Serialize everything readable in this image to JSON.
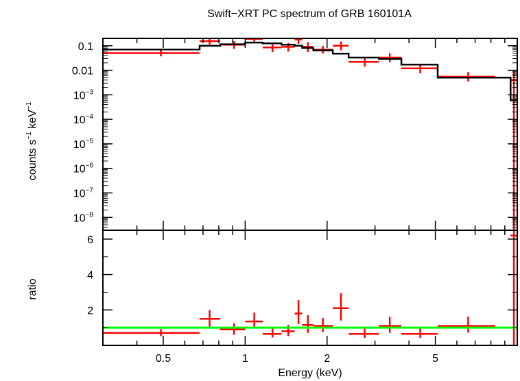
{
  "chart_data": {
    "type": "scatter",
    "title": "Swift−XRT PC spectrum of GRB 160101A",
    "xlabel": "Energy (keV)",
    "x_scale": "log",
    "xlim": [
      0.3,
      10
    ],
    "x_tick_labels": [
      {
        "value": 0.5,
        "label": "0.5"
      },
      {
        "value": 1,
        "label": "1"
      },
      {
        "value": 2,
        "label": "2"
      },
      {
        "value": 5,
        "label": "5"
      }
    ],
    "top_panel": {
      "ylabel_main": "counts s",
      "ylabel_exp1": "−1",
      "ylabel_mid": " keV",
      "ylabel_exp2": "−1",
      "y_scale": "log",
      "ylim": [
        3e-09,
        0.2
      ],
      "y_tick_labels": [
        {
          "value": 0.1,
          "base": "0.1",
          "exp": ""
        },
        {
          "value": 0.01,
          "base": "0.01",
          "exp": ""
        },
        {
          "value": 0.001,
          "base": "10",
          "exp": "−3"
        },
        {
          "value": 0.0001,
          "base": "10",
          "exp": "−4"
        },
        {
          "value": 1e-05,
          "base": "10",
          "exp": "−5"
        },
        {
          "value": 1e-06,
          "base": "10",
          "exp": "−6"
        },
        {
          "value": 1e-07,
          "base": "10",
          "exp": "−7"
        },
        {
          "value": 1e-08,
          "base": "10",
          "exp": "−8"
        }
      ],
      "data": [
        {
          "x_lo": 0.3,
          "x_hi": 0.68,
          "x": 0.49,
          "y": 0.05,
          "y_lo": 0.037,
          "y_hi": 0.065
        },
        {
          "x_lo": 0.68,
          "x_hi": 0.81,
          "x": 0.74,
          "y": 0.155,
          "y_lo": 0.11,
          "y_hi": 0.21
        },
        {
          "x_lo": 0.81,
          "x_hi": 1.0,
          "x": 0.91,
          "y": 0.11,
          "y_lo": 0.075,
          "y_hi": 0.155
        },
        {
          "x_lo": 1.0,
          "x_hi": 1.16,
          "x": 1.08,
          "y": 0.19,
          "y_lo": 0.14,
          "y_hi": 0.26
        },
        {
          "x_lo": 1.16,
          "x_hi": 1.36,
          "x": 1.26,
          "y": 0.085,
          "y_lo": 0.055,
          "y_hi": 0.12
        },
        {
          "x_lo": 1.36,
          "x_hi": 1.52,
          "x": 1.44,
          "y": 0.09,
          "y_lo": 0.058,
          "y_hi": 0.13
        },
        {
          "x_lo": 1.52,
          "x_hi": 1.62,
          "x": 1.57,
          "y": 0.18,
          "y_lo": 0.12,
          "y_hi": 0.26
        },
        {
          "x_lo": 1.62,
          "x_hi": 1.78,
          "x": 1.7,
          "y": 0.09,
          "y_lo": 0.055,
          "y_hi": 0.14
        },
        {
          "x_lo": 1.78,
          "x_hi": 2.1,
          "x": 1.93,
          "y": 0.07,
          "y_lo": 0.048,
          "y_hi": 0.1
        },
        {
          "x_lo": 2.1,
          "x_hi": 2.4,
          "x": 2.25,
          "y": 0.1,
          "y_lo": 0.065,
          "y_hi": 0.15
        },
        {
          "x_lo": 2.4,
          "x_hi": 3.1,
          "x": 2.75,
          "y": 0.022,
          "y_lo": 0.014,
          "y_hi": 0.033
        },
        {
          "x_lo": 3.1,
          "x_hi": 3.75,
          "x": 3.4,
          "y": 0.033,
          "y_lo": 0.021,
          "y_hi": 0.05
        },
        {
          "x_lo": 3.75,
          "x_hi": 5.1,
          "x": 4.4,
          "y": 0.012,
          "y_lo": 0.0075,
          "y_hi": 0.018
        },
        {
          "x_lo": 5.1,
          "x_hi": 8.3,
          "x": 6.6,
          "y": 0.0055,
          "y_lo": 0.0035,
          "y_hi": 0.0085
        },
        {
          "x_lo": 9.45,
          "x_hi": 10.0,
          "x": 9.72,
          "y": 0.004,
          "y_lo": 3e-09,
          "y_hi": 0.009
        }
      ],
      "model": [
        {
          "x_lo": 0.3,
          "x_hi": 0.68,
          "y": 0.07
        },
        {
          "x_lo": 0.68,
          "x_hi": 0.81,
          "y": 0.1
        },
        {
          "x_lo": 0.81,
          "x_hi": 1.0,
          "y": 0.115
        },
        {
          "x_lo": 1.0,
          "x_hi": 1.16,
          "y": 0.135
        },
        {
          "x_lo": 1.16,
          "x_hi": 1.36,
          "y": 0.125
        },
        {
          "x_lo": 1.36,
          "x_hi": 1.52,
          "y": 0.11
        },
        {
          "x_lo": 1.52,
          "x_hi": 1.62,
          "y": 0.1
        },
        {
          "x_lo": 1.62,
          "x_hi": 1.78,
          "y": 0.082
        },
        {
          "x_lo": 1.78,
          "x_hi": 2.1,
          "y": 0.065
        },
        {
          "x_lo": 2.1,
          "x_hi": 2.4,
          "y": 0.048
        },
        {
          "x_lo": 2.4,
          "x_hi": 3.1,
          "y": 0.033
        },
        {
          "x_lo": 3.1,
          "x_hi": 3.75,
          "y": 0.029
        },
        {
          "x_lo": 3.75,
          "x_hi": 5.1,
          "y": 0.017
        },
        {
          "x_lo": 5.1,
          "x_hi": 8.3,
          "y": 0.005
        },
        {
          "x_lo": 8.3,
          "x_hi": 9.45,
          "y": 0.005
        },
        {
          "x_lo": 9.45,
          "x_hi": 10.0,
          "y": 0.0006
        }
      ]
    },
    "bottom_panel": {
      "ylabel": "ratio",
      "y_scale": "linear",
      "ylim": [
        0,
        6.5
      ],
      "y_tick_labels": [
        {
          "value": 2,
          "label": "2"
        },
        {
          "value": 4,
          "label": "4"
        },
        {
          "value": 6,
          "label": "6"
        }
      ],
      "reference_line": 1,
      "data": [
        {
          "x_lo": 0.3,
          "x_hi": 0.68,
          "x": 0.49,
          "y": 0.7,
          "y_lo": 0.52,
          "y_hi": 0.92
        },
        {
          "x_lo": 0.68,
          "x_hi": 0.81,
          "x": 0.74,
          "y": 1.5,
          "y_lo": 1.0,
          "y_hi": 2.0
        },
        {
          "x_lo": 0.81,
          "x_hi": 1.0,
          "x": 0.91,
          "y": 0.9,
          "y_lo": 0.6,
          "y_hi": 1.25
        },
        {
          "x_lo": 1.0,
          "x_hi": 1.16,
          "x": 1.08,
          "y": 1.35,
          "y_lo": 0.95,
          "y_hi": 1.85
        },
        {
          "x_lo": 1.16,
          "x_hi": 1.36,
          "x": 1.26,
          "y": 0.65,
          "y_lo": 0.45,
          "y_hi": 0.95
        },
        {
          "x_lo": 1.36,
          "x_hi": 1.52,
          "x": 1.44,
          "y": 0.8,
          "y_lo": 0.52,
          "y_hi": 1.15
        },
        {
          "x_lo": 1.52,
          "x_hi": 1.62,
          "x": 1.57,
          "y": 1.8,
          "y_lo": 1.2,
          "y_hi": 2.55
        },
        {
          "x_lo": 1.62,
          "x_hi": 1.78,
          "x": 1.7,
          "y": 1.15,
          "y_lo": 0.7,
          "y_hi": 1.7
        },
        {
          "x_lo": 1.78,
          "x_hi": 2.1,
          "x": 1.93,
          "y": 1.1,
          "y_lo": 0.75,
          "y_hi": 1.55
        },
        {
          "x_lo": 2.1,
          "x_hi": 2.4,
          "x": 2.25,
          "y": 2.1,
          "y_lo": 1.4,
          "y_hi": 2.95
        },
        {
          "x_lo": 2.4,
          "x_hi": 3.1,
          "x": 2.75,
          "y": 0.65,
          "y_lo": 0.42,
          "y_hi": 0.98
        },
        {
          "x_lo": 3.1,
          "x_hi": 3.75,
          "x": 3.4,
          "y": 1.1,
          "y_lo": 0.7,
          "y_hi": 1.6
        },
        {
          "x_lo": 3.75,
          "x_hi": 5.1,
          "x": 4.4,
          "y": 0.65,
          "y_lo": 0.42,
          "y_hi": 0.98
        },
        {
          "x_lo": 5.1,
          "x_hi": 8.3,
          "x": 6.6,
          "y": 1.1,
          "y_lo": 0.72,
          "y_hi": 1.62
        },
        {
          "x_lo": 9.45,
          "x_hi": 10.0,
          "x": 9.72,
          "y": 6.2,
          "y_lo": 0.0,
          "y_hi": 6.5
        }
      ]
    },
    "colors": {
      "data": "#ff0000",
      "model": "#000000",
      "reference": "#00ff00",
      "axes": "#000000"
    }
  }
}
